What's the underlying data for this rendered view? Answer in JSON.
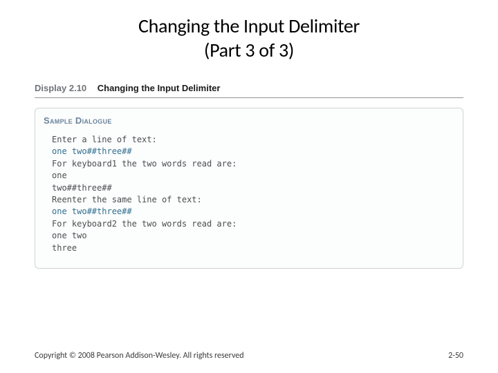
{
  "title": {
    "line1": "Changing the Input Delimiter",
    "line2": "(Part 3 of 3)"
  },
  "display": {
    "label": "Display 2.10",
    "caption": "Changing the Input Delimiter"
  },
  "sample": {
    "title": "Sample Dialogue",
    "lines": [
      {
        "text": "Enter a line of text:",
        "user": false
      },
      {
        "text": "one two##three##",
        "user": true
      },
      {
        "text": "For keyboard1 the two words read are:",
        "user": false
      },
      {
        "text": "one",
        "user": false
      },
      {
        "text": "two##three##",
        "user": false
      },
      {
        "text": "Reenter the same line of text:",
        "user": false
      },
      {
        "text": "one two##three##",
        "user": true
      },
      {
        "text": "For keyboard2 the two words read are:",
        "user": false
      },
      {
        "text": "one two",
        "user": false
      },
      {
        "text": "three",
        "user": false
      }
    ]
  },
  "footer": {
    "copyright": "Copyright © 2008 Pearson Addison-Wesley. All rights reserved",
    "page": "2-50"
  },
  "colors": {
    "title_text": "#000000",
    "display_label": "#707378",
    "display_caption": "#1a1a1a",
    "sample_title": "#6b849c",
    "body_text": "#4a4d50",
    "user_input": "#2f6f8f",
    "box_border": "#cfd3d6",
    "box_background": "#fcfdfd",
    "header_rule": "#949494",
    "footer_text": "#3a3a3a",
    "background": "#ffffff"
  },
  "typography": {
    "title_fontsize": 28,
    "display_fontsize": 13,
    "sample_title_fontsize": 13,
    "mono_fontsize": 12,
    "footer_fontsize": 12
  }
}
